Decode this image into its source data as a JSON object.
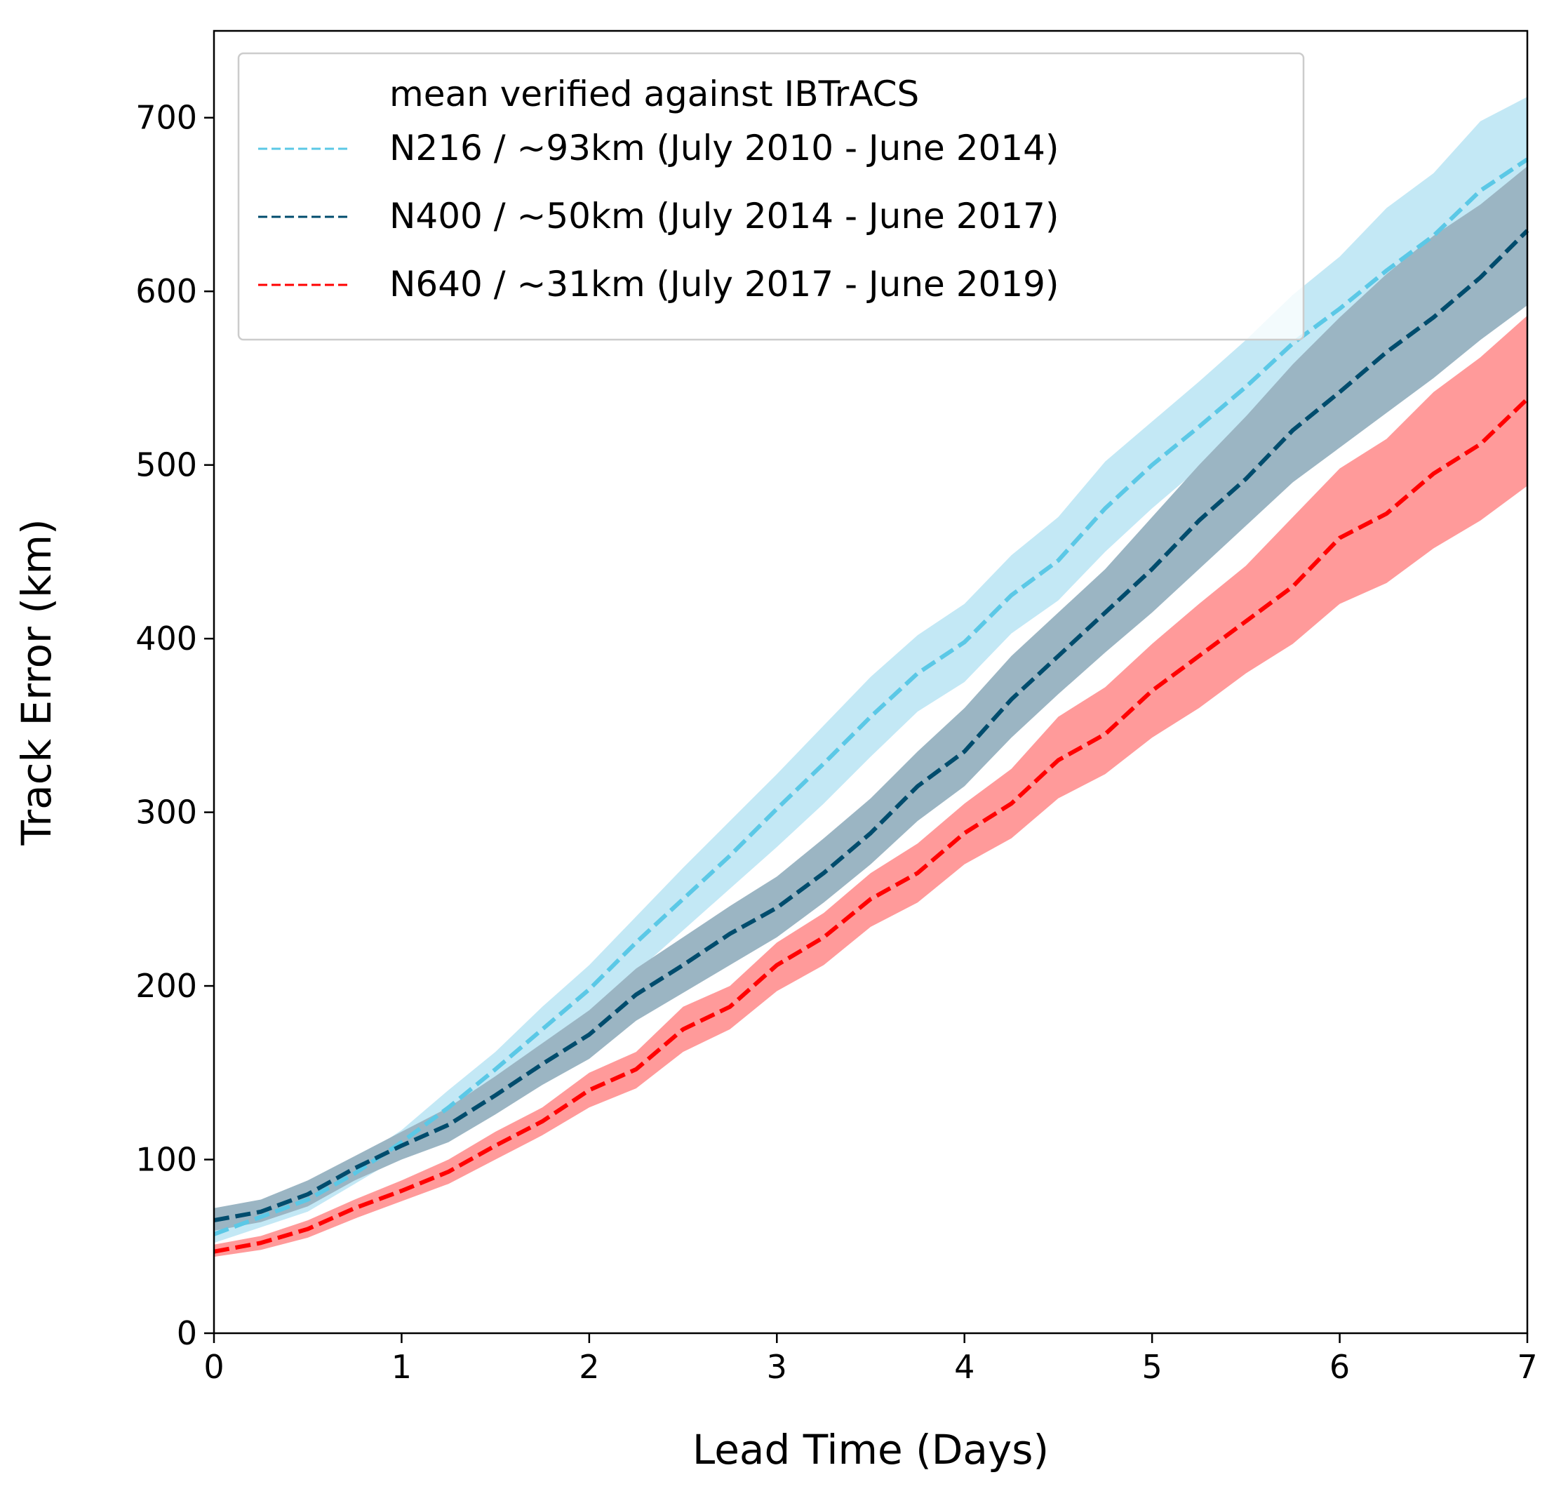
{
  "chart_data": {
    "type": "line",
    "xlabel": "Lead Time (Days)",
    "ylabel": "Track Error (km)",
    "xlim": [
      0,
      7
    ],
    "ylim": [
      0,
      750
    ],
    "xticks": [
      0,
      1,
      2,
      3,
      4,
      5,
      6,
      7
    ],
    "yticks": [
      0,
      100,
      200,
      300,
      400,
      500,
      600,
      700
    ],
    "grid": false,
    "legend_position": "top-left",
    "legend_title": "mean verified against IBTrACS",
    "x": [
      0,
      0.25,
      0.5,
      0.75,
      1,
      1.25,
      1.5,
      1.75,
      2,
      2.25,
      2.5,
      2.75,
      3,
      3.25,
      3.5,
      3.75,
      4,
      4.25,
      4.5,
      4.75,
      5,
      5.25,
      5.5,
      5.75,
      6,
      6.25,
      6.5,
      6.75,
      7
    ],
    "series": [
      {
        "name": "N216 / ~93km (July 2010 - June 2014)",
        "color": "#5bc8e6",
        "band_color": "#c3e8f5",
        "values": [
          57,
          67,
          77,
          92,
          110,
          130,
          152,
          175,
          198,
          225,
          250,
          275,
          302,
          328,
          355,
          380,
          398,
          425,
          445,
          475,
          500,
          522,
          545,
          570,
          590,
          612,
          632,
          658,
          676
        ],
        "lower": [
          52,
          61,
          70,
          86,
          102,
          120,
          141,
          162,
          184,
          208,
          232,
          256,
          280,
          305,
          332,
          358,
          375,
          403,
          422,
          450,
          475,
          498,
          522,
          547,
          570,
          592,
          612,
          638,
          655
        ],
        "upper": [
          63,
          73,
          85,
          99,
          117,
          140,
          162,
          188,
          212,
          240,
          268,
          295,
          322,
          350,
          378,
          402,
          420,
          448,
          470,
          502,
          525,
          548,
          572,
          598,
          620,
          648,
          668,
          698,
          712
        ]
      },
      {
        "name": "N400 / ~50km (July 2014 - June 2017)",
        "color": "#004c6d",
        "band_color": "#9bb5c3",
        "values": [
          65,
          70,
          80,
          95,
          108,
          120,
          137,
          155,
          172,
          195,
          212,
          230,
          245,
          265,
          288,
          315,
          335,
          365,
          390,
          415,
          440,
          468,
          492,
          520,
          542,
          565,
          585,
          608,
          635
        ],
        "lower": [
          59,
          64,
          73,
          88,
          100,
          110,
          126,
          143,
          158,
          180,
          196,
          212,
          228,
          248,
          270,
          295,
          315,
          343,
          368,
          392,
          415,
          440,
          465,
          490,
          510,
          530,
          550,
          572,
          592
        ],
        "upper": [
          72,
          77,
          88,
          102,
          116,
          130,
          148,
          167,
          186,
          210,
          228,
          246,
          263,
          285,
          308,
          335,
          360,
          390,
          415,
          440,
          470,
          500,
          528,
          558,
          585,
          610,
          632,
          650,
          672
        ]
      },
      {
        "name": "N640 / ~31km (July 2017 - June 2019)",
        "color": "#ff0000",
        "band_color": "#ff9a9a",
        "values": [
          47,
          52,
          60,
          72,
          82,
          93,
          108,
          122,
          140,
          152,
          175,
          188,
          212,
          228,
          250,
          265,
          288,
          305,
          330,
          345,
          370,
          390,
          410,
          430,
          458,
          472,
          495,
          512,
          538
        ],
        "lower": [
          44,
          48,
          55,
          66,
          76,
          86,
          100,
          114,
          130,
          141,
          162,
          175,
          197,
          212,
          234,
          248,
          270,
          285,
          308,
          322,
          343,
          360,
          380,
          397,
          420,
          432,
          452,
          468,
          488
        ],
        "upper": [
          51,
          56,
          65,
          77,
          88,
          100,
          116,
          130,
          150,
          162,
          188,
          200,
          225,
          242,
          265,
          282,
          305,
          325,
          355,
          372,
          397,
          420,
          442,
          470,
          498,
          515,
          542,
          562,
          586
        ]
      }
    ]
  }
}
